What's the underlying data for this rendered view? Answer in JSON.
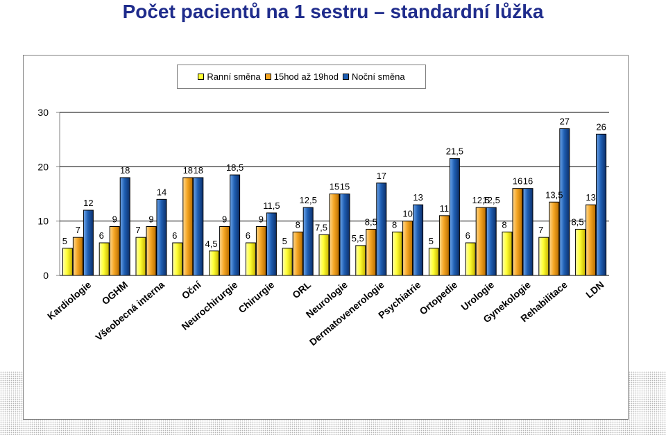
{
  "page": {
    "title": "Počet pacientů na 1 sestru – standardní lůžka"
  },
  "chart_data": {
    "type": "bar",
    "title": "",
    "xlabel": "",
    "ylabel": "",
    "ylim": [
      0,
      30
    ],
    "yticks": [
      0,
      10,
      20,
      30
    ],
    "grid": true,
    "legend_position": "top",
    "categories": [
      "Kardiologie",
      "OGHM",
      "Všeobecná interna",
      "Oční",
      "Neurochirurgie",
      "Chirurgie",
      "ORL",
      "Neurologie",
      "Dermatovenerologie",
      "Psychiatrie",
      "Ortopedie",
      "Urologie",
      "Gynekologie",
      "Rehabilitace",
      "LDN"
    ],
    "series": [
      {
        "name": "Ranní směna",
        "color": "#ffff33",
        "values": [
          5,
          6,
          7,
          6,
          4.5,
          6,
          5,
          7.5,
          5.5,
          8,
          5,
          6,
          8,
          7,
          8.5
        ]
      },
      {
        "name": "15hod až 19hod",
        "color": "#f5a623",
        "values": [
          7,
          9,
          9,
          18,
          9,
          9,
          8,
          15,
          8.5,
          10,
          11,
          12.5,
          16,
          13.5,
          13
        ]
      },
      {
        "name": "Noční směna",
        "color": "#1f5fb4",
        "values": [
          12,
          18,
          14,
          18,
          18.5,
          11.5,
          12.5,
          15,
          17,
          13,
          21.5,
          12.5,
          16,
          27,
          26
        ]
      }
    ],
    "data_labels": [
      [
        "5",
        "6",
        "7",
        "6",
        "4,5",
        "6",
        "5",
        "7,5",
        "5,5",
        "8",
        "5",
        "6",
        "8",
        "7",
        "8,5"
      ],
      [
        "7",
        "9",
        "9",
        "18",
        "9",
        "9",
        "8",
        "15",
        "8,5",
        "10",
        "11",
        "12,5",
        "16",
        "13,5",
        "13"
      ],
      [
        "12",
        "18",
        "14",
        "18",
        "18,5",
        "11,5",
        "12,5",
        "15",
        "17",
        "13",
        "21,5",
        "12,5",
        "16",
        "27",
        "26"
      ]
    ]
  }
}
